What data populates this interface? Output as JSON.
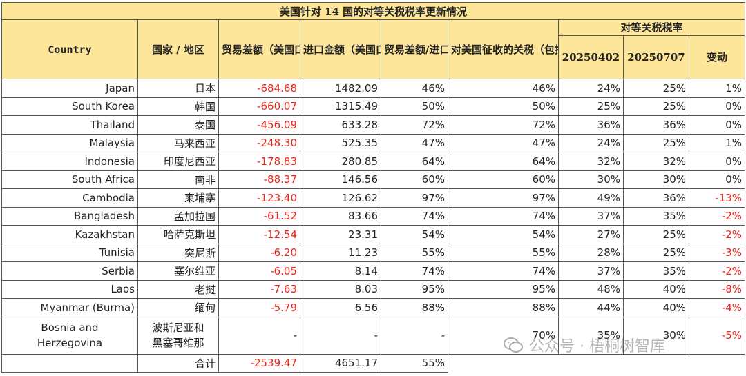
{
  "title": "美国针对 14 国的对等关税税率更新情况",
  "headers": {
    "country": "Country",
    "region": "国家 / 地区",
    "trade_gap": "贸易差额（美国口径，亿美元）",
    "import_value": "进口金额（美国口径，亿美元）",
    "gap_ratio": "贸易差额/进口金额",
    "tariff_incl": "对美国征收的关税（包括货币操纵和贸易壁垒）",
    "reciprocal_group": "对等关税税率",
    "date1": "20250402",
    "date2": "20250707",
    "change": "变动"
  },
  "rows": [
    {
      "country": "Japan",
      "cn": "日本",
      "gap": "-684.68",
      "imp": "1482.09",
      "ratio": "46%",
      "tariff": "46%",
      "r1": "24%",
      "r2": "25%",
      "chg": "1%",
      "chg_neg": false
    },
    {
      "country": "South Korea",
      "cn": "韩国",
      "gap": "-660.07",
      "imp": "1315.49",
      "ratio": "50%",
      "tariff": "50%",
      "r1": "25%",
      "r2": "25%",
      "chg": "0%",
      "chg_neg": false
    },
    {
      "country": "Thailand",
      "cn": "泰国",
      "gap": "-456.09",
      "imp": "633.28",
      "ratio": "72%",
      "tariff": "72%",
      "r1": "36%",
      "r2": "36%",
      "chg": "0%",
      "chg_neg": false
    },
    {
      "country": "Malaysia",
      "cn": "马来西亚",
      "gap": "-248.30",
      "imp": "525.35",
      "ratio": "47%",
      "tariff": "47%",
      "r1": "24%",
      "r2": "25%",
      "chg": "1%",
      "chg_neg": false
    },
    {
      "country": "Indonesia",
      "cn": "印度尼西亚",
      "gap": "-178.83",
      "imp": "280.85",
      "ratio": "64%",
      "tariff": "64%",
      "r1": "32%",
      "r2": "32%",
      "chg": "0%",
      "chg_neg": false
    },
    {
      "country": "South Africa",
      "cn": "南非",
      "gap": "-88.37",
      "imp": "146.56",
      "ratio": "60%",
      "tariff": "60%",
      "r1": "30%",
      "r2": "30%",
      "chg": "0%",
      "chg_neg": false
    },
    {
      "country": "Cambodia",
      "cn": "柬埔寨",
      "gap": "-123.40",
      "imp": "126.62",
      "ratio": "97%",
      "tariff": "97%",
      "r1": "49%",
      "r2": "36%",
      "chg": "-13%",
      "chg_neg": true
    },
    {
      "country": "Bangladesh",
      "cn": "孟加拉国",
      "gap": "-61.52",
      "imp": "83.66",
      "ratio": "74%",
      "tariff": "74%",
      "r1": "37%",
      "r2": "35%",
      "chg": "-2%",
      "chg_neg": true
    },
    {
      "country": "Kazakhstan",
      "cn": "哈萨克斯坦",
      "gap": "-12.54",
      "imp": "23.31",
      "ratio": "54%",
      "tariff": "54%",
      "r1": "27%",
      "r2": "25%",
      "chg": "-2%",
      "chg_neg": true
    },
    {
      "country": "Tunisia",
      "cn": "突尼斯",
      "gap": "-6.20",
      "imp": "11.23",
      "ratio": "55%",
      "tariff": "55%",
      "r1": "28%",
      "r2": "25%",
      "chg": "-3%",
      "chg_neg": true
    },
    {
      "country": "Serbia",
      "cn": "塞尔维亚",
      "gap": "-6.05",
      "imp": "8.14",
      "ratio": "74%",
      "tariff": "74%",
      "r1": "37%",
      "r2": "35%",
      "chg": "-2%",
      "chg_neg": true
    },
    {
      "country": "Laos",
      "cn": "老挝",
      "gap": "-7.63",
      "imp": "8.03",
      "ratio": "95%",
      "tariff": "95%",
      "r1": "48%",
      "r2": "40%",
      "chg": "-8%",
      "chg_neg": true
    },
    {
      "country": "Myanmar (Burma)",
      "cn": "缅甸",
      "gap": "-5.79",
      "imp": "6.56",
      "ratio": "88%",
      "tariff": "88%",
      "r1": "44%",
      "r2": "40%",
      "chg": "-4%",
      "chg_neg": true
    }
  ],
  "bosnia": {
    "country_line1": "Bosnia and",
    "country_line2": "Herzegovina",
    "cn_line1": "波斯尼亚和",
    "cn_line2": "黑塞哥维那",
    "gap": "-",
    "imp": "-",
    "ratio": "-",
    "tariff": "70%",
    "r1": "35%",
    "r2": "30%",
    "chg": "-5%"
  },
  "total": {
    "label": "合计",
    "gap": "-2539.47",
    "imp": "4651.17",
    "ratio": "55%"
  },
  "watermark": "公众号 · 梧桐树智库",
  "colors": {
    "header_bg": "#fde69a",
    "negative": "#e8251a"
  }
}
